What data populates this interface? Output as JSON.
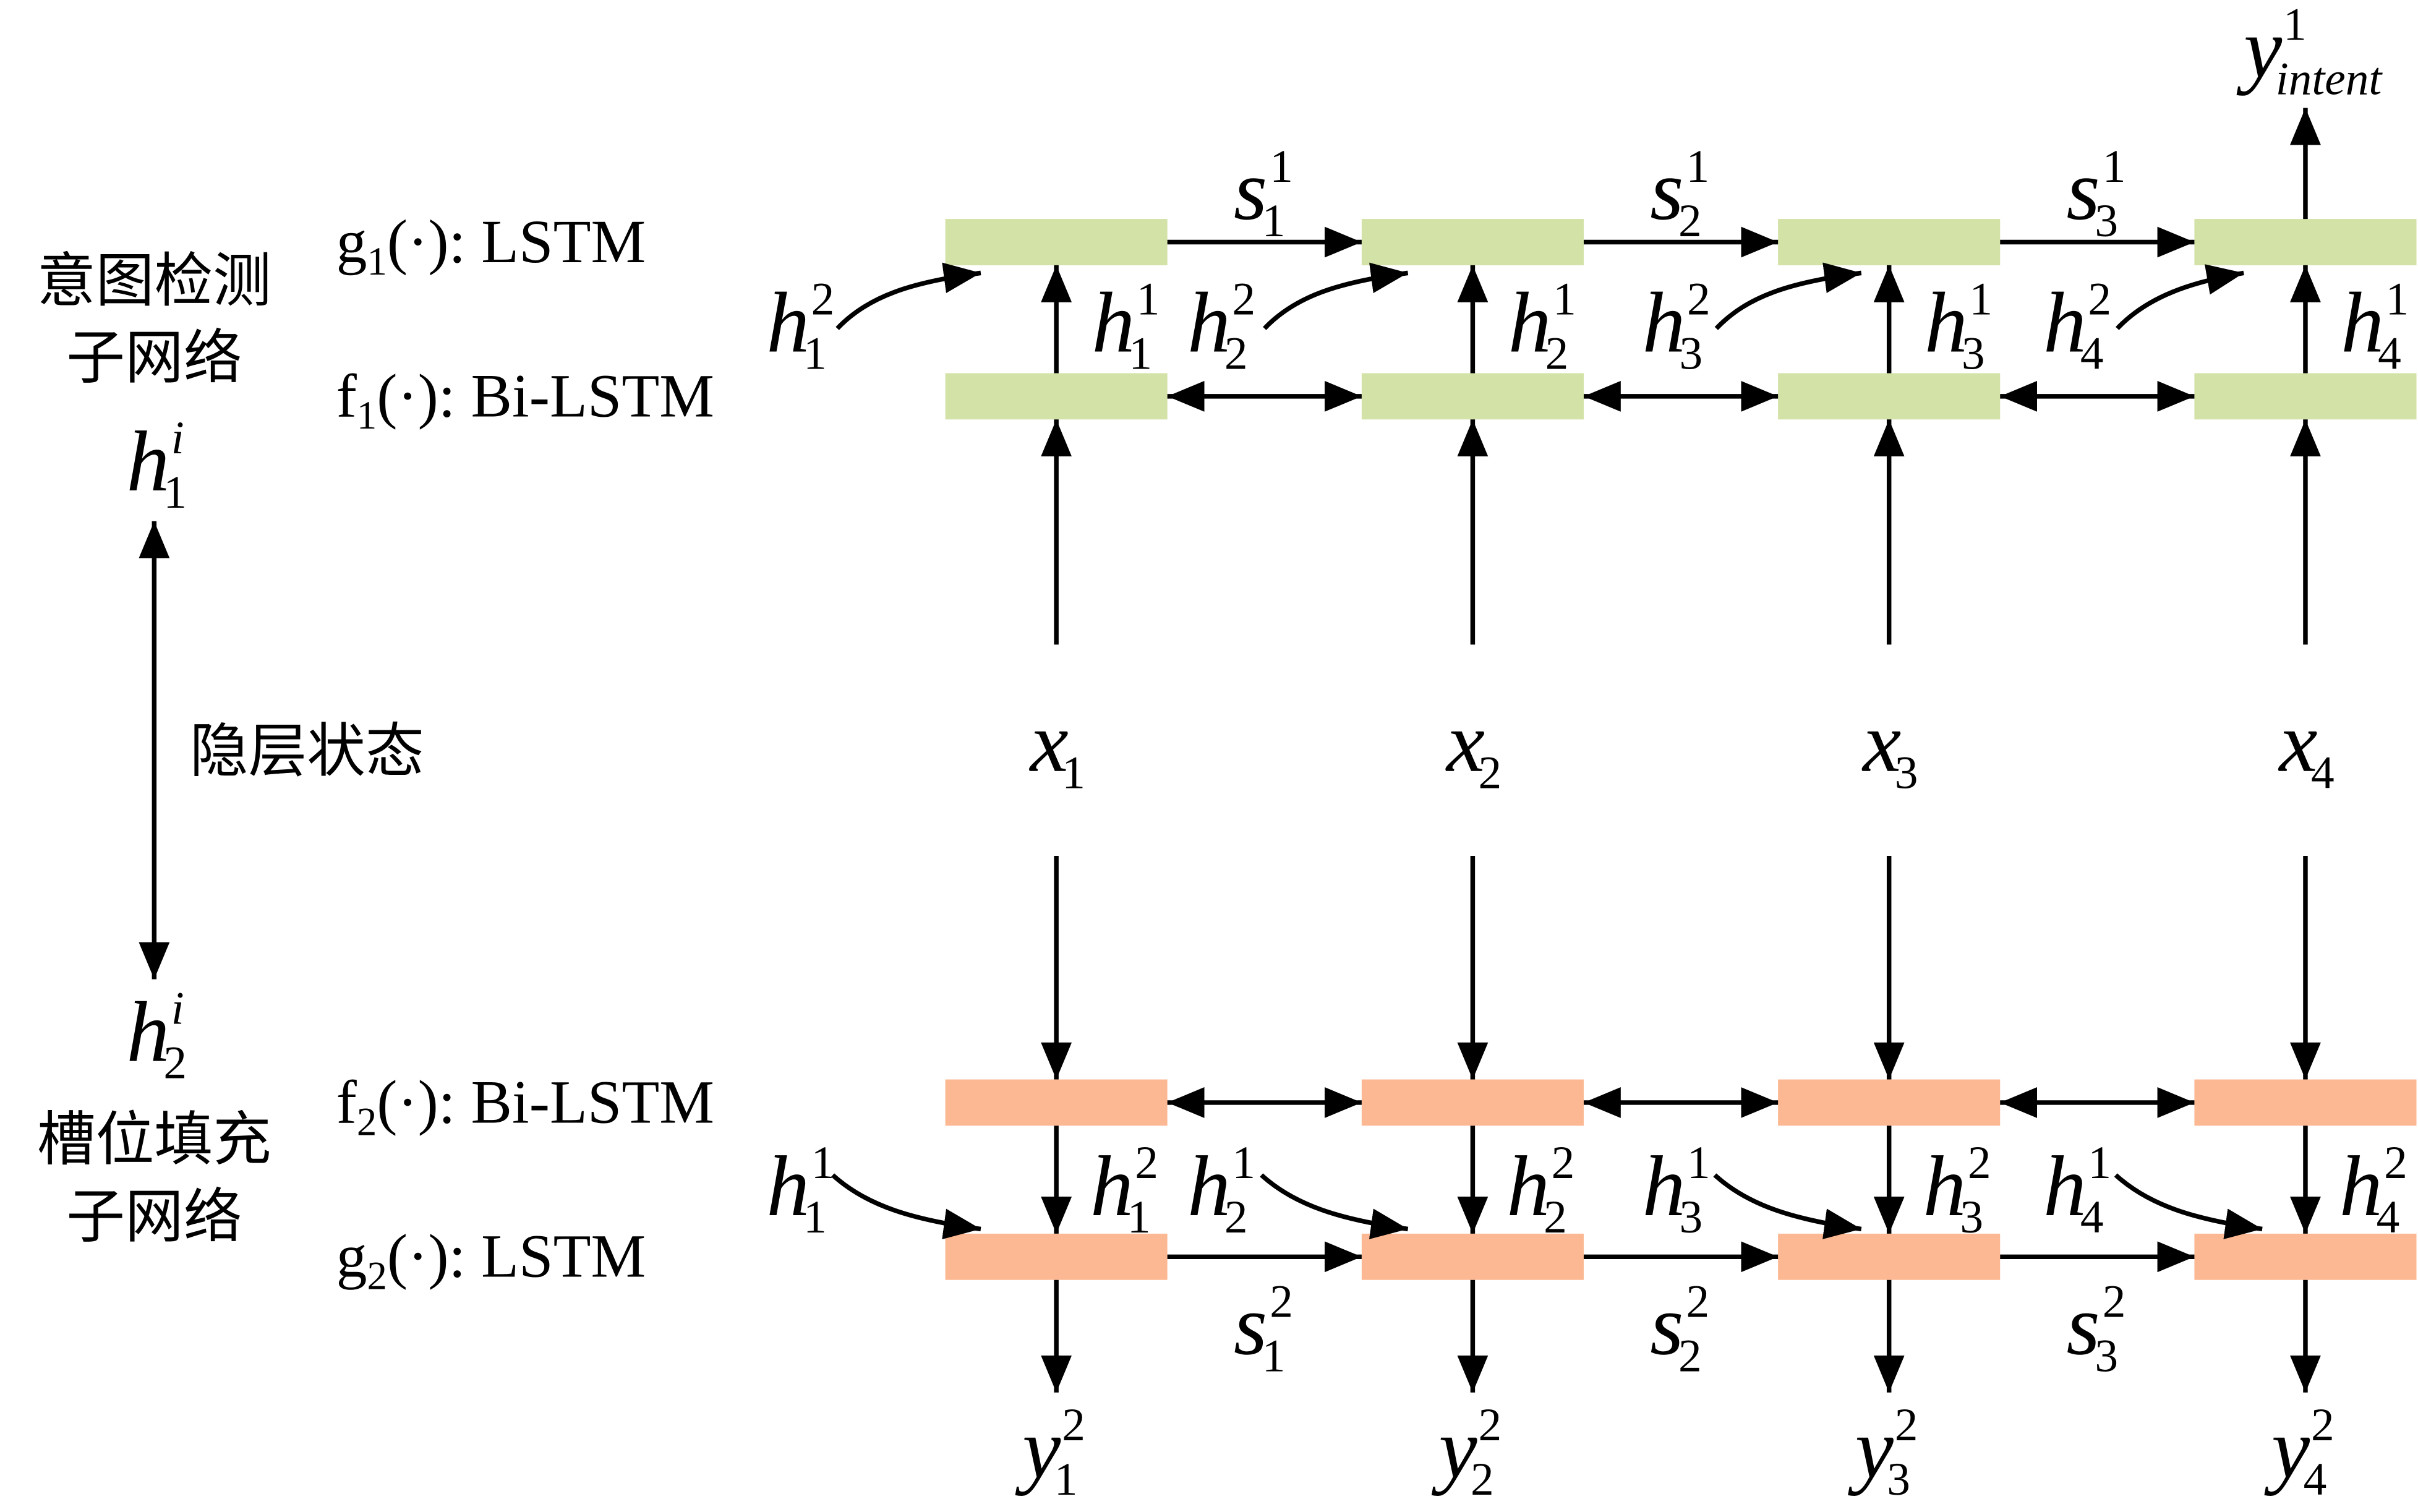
{
  "colors": {
    "intent_cell": "#d3e2a6",
    "slot_cell": "#fcb892",
    "ink": "#000000"
  },
  "intent_subnetwork": {
    "title": [
      "意图检测",
      "子网络"
    ],
    "g_layer": {
      "name": "g",
      "sub": "1",
      "rest": "(·): LSTM"
    },
    "f_layer": {
      "name": "f",
      "sub": "1",
      "rest": "(·): Bi-LSTM"
    },
    "hidden_state": {
      "base": "h",
      "sub": "1",
      "sup": "i"
    },
    "incoming_hidden": [
      {
        "base": "h",
        "sub": "1",
        "sup": "2"
      },
      {
        "base": "h",
        "sub": "2",
        "sup": "2"
      },
      {
        "base": "h",
        "sub": "3",
        "sup": "2"
      },
      {
        "base": "h",
        "sub": "4",
        "sup": "2"
      }
    ],
    "f_outputs": [
      {
        "base": "h",
        "sub": "1",
        "sup": "1"
      },
      {
        "base": "h",
        "sub": "2",
        "sup": "1"
      },
      {
        "base": "h",
        "sub": "3",
        "sup": "1"
      },
      {
        "base": "h",
        "sub": "4",
        "sup": "1"
      }
    ],
    "states": [
      {
        "base": "s",
        "sub": "1",
        "sup": "1"
      },
      {
        "base": "s",
        "sub": "2",
        "sup": "1"
      },
      {
        "base": "s",
        "sub": "3",
        "sup": "1"
      }
    ],
    "output": {
      "base": "y",
      "sub": "intent",
      "sup": "1"
    }
  },
  "hidden_state_link": "隐层状态",
  "inputs": [
    {
      "base": "x",
      "sub": "1"
    },
    {
      "base": "x",
      "sub": "2"
    },
    {
      "base": "x",
      "sub": "3"
    },
    {
      "base": "x",
      "sub": "4"
    }
  ],
  "slot_subnetwork": {
    "title": [
      "槽位填充",
      "子网络"
    ],
    "f_layer": {
      "name": "f",
      "sub": "2",
      "rest": "(·): Bi-LSTM"
    },
    "g_layer": {
      "name": "g",
      "sub": "2",
      "rest": "(·): LSTM"
    },
    "hidden_state": {
      "base": "h",
      "sub": "2",
      "sup": "i"
    },
    "incoming_hidden": [
      {
        "base": "h",
        "sub": "1",
        "sup": "1"
      },
      {
        "base": "h",
        "sub": "2",
        "sup": "1"
      },
      {
        "base": "h",
        "sub": "3",
        "sup": "1"
      },
      {
        "base": "h",
        "sub": "4",
        "sup": "1"
      }
    ],
    "f_outputs": [
      {
        "base": "h",
        "sub": "1",
        "sup": "2"
      },
      {
        "base": "h",
        "sub": "2",
        "sup": "2"
      },
      {
        "base": "h",
        "sub": "3",
        "sup": "2"
      },
      {
        "base": "h",
        "sub": "4",
        "sup": "2"
      }
    ],
    "states": [
      {
        "base": "s",
        "sub": "1",
        "sup": "2"
      },
      {
        "base": "s",
        "sub": "2",
        "sup": "2"
      },
      {
        "base": "s",
        "sub": "3",
        "sup": "2"
      }
    ],
    "outputs": [
      {
        "base": "y",
        "sub": "1",
        "sup": "2"
      },
      {
        "base": "y",
        "sub": "2",
        "sup": "2"
      },
      {
        "base": "y",
        "sub": "3",
        "sup": "2"
      },
      {
        "base": "y",
        "sub": "4",
        "sup": "2"
      }
    ]
  }
}
